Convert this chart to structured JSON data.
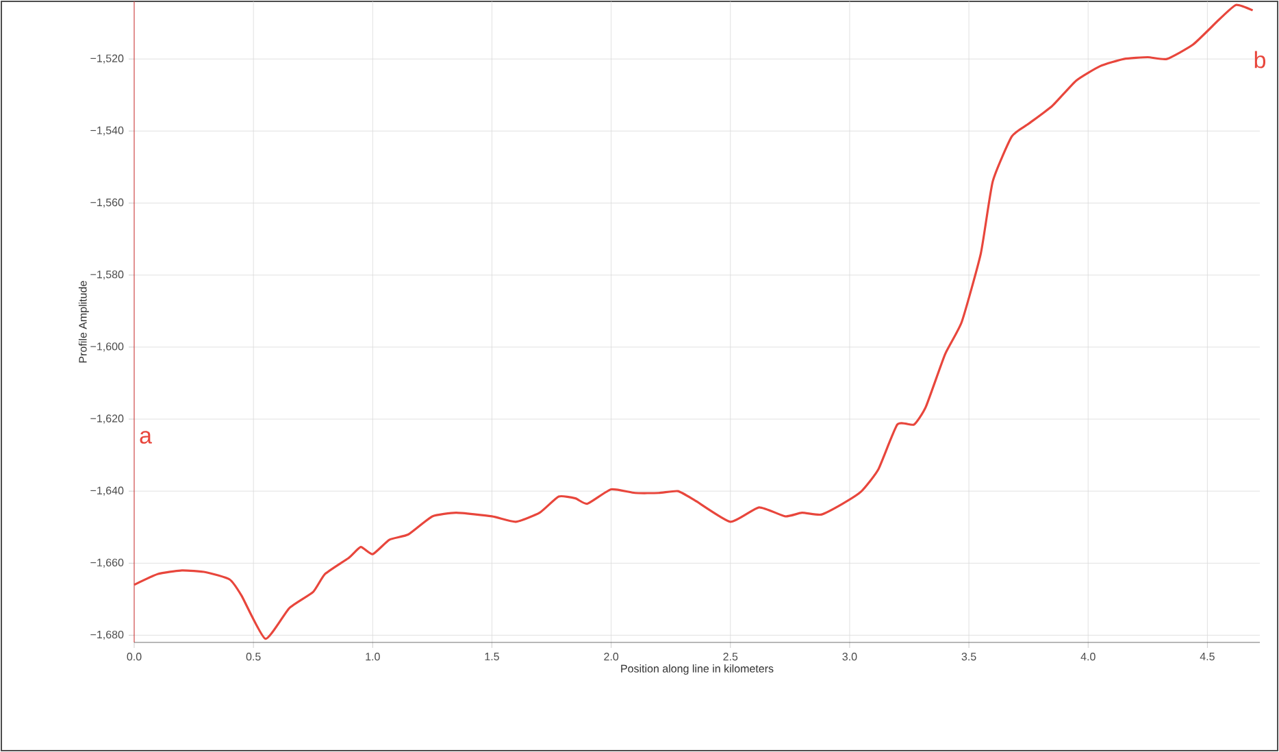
{
  "chart_data": {
    "type": "line",
    "xlabel": "Position along line in kilometers",
    "ylabel": "Profile Amplitude",
    "annotations": [
      "a",
      "b"
    ],
    "xlim": [
      0,
      4.72
    ],
    "ylim": [
      -1682,
      -1504
    ],
    "xticks": [
      {
        "value": 0,
        "label": "0.0"
      },
      {
        "value": 0.5,
        "label": "0.5"
      },
      {
        "value": 1,
        "label": "1.0"
      },
      {
        "value": 1.5,
        "label": "1.5"
      },
      {
        "value": 2,
        "label": "2.0"
      },
      {
        "value": 2.5,
        "label": "2.5"
      },
      {
        "value": 3,
        "label": "3.0"
      },
      {
        "value": 3.5,
        "label": "3.5"
      },
      {
        "value": 4,
        "label": "4.0"
      },
      {
        "value": 4.5,
        "label": "4.5"
      }
    ],
    "yticks": [
      {
        "value": -1680,
        "label": "−1,680"
      },
      {
        "value": -1660,
        "label": "−1,660"
      },
      {
        "value": -1640,
        "label": "−1,640"
      },
      {
        "value": -1620,
        "label": "−1,620"
      },
      {
        "value": -1600,
        "label": "−1,600"
      },
      {
        "value": -1580,
        "label": "−1,580"
      },
      {
        "value": -1560,
        "label": "−1,560"
      },
      {
        "value": -1540,
        "label": "−1,540"
      },
      {
        "value": -1520,
        "label": "−1,520"
      }
    ],
    "grid": true,
    "marker": "none",
    "line_style": "solid",
    "series": [
      {
        "color": "#e8463c",
        "x": [
          0,
          0.1,
          0.2,
          0.3,
          0.4,
          0.45,
          0.55,
          0.65,
          0.75,
          0.8,
          0.9,
          0.95,
          1.0,
          1.07,
          1.15,
          1.25,
          1.35,
          1.5,
          1.6,
          1.7,
          1.78,
          1.85,
          1.9,
          2.0,
          2.1,
          2.2,
          2.28,
          2.35,
          2.5,
          2.62,
          2.73,
          2.8,
          2.88,
          2.97,
          3.05,
          3.12,
          3.2,
          3.27,
          3.32,
          3.4,
          3.47,
          3.55,
          3.6,
          3.68,
          3.75,
          3.85,
          3.95,
          4.05,
          4.15,
          4.25,
          4.33,
          4.44,
          4.55,
          4.62,
          4.69
        ],
        "values": [
          -1666,
          -1663,
          -1662,
          -1662.5,
          -1664.5,
          -1669,
          -1681,
          -1672.5,
          -1668,
          -1663,
          -1658.5,
          -1655.5,
          -1657.5,
          -1653.5,
          -1652,
          -1647,
          -1646,
          -1647,
          -1648.5,
          -1646,
          -1641.5,
          -1642,
          -1643.5,
          -1639.5,
          -1640.5,
          -1640.5,
          -1640,
          -1642.5,
          -1648.5,
          -1644.5,
          -1647,
          -1646,
          -1646.5,
          -1643.5,
          -1640,
          -1634,
          -1621.5,
          -1621.5,
          -1616.5,
          -1602,
          -1593,
          -1574,
          -1554,
          -1541.5,
          -1538,
          -1533,
          -1526,
          -1522,
          -1520,
          -1519.5,
          -1520,
          -1516,
          -1509,
          -1505,
          -1506.5
        ]
      }
    ]
  }
}
